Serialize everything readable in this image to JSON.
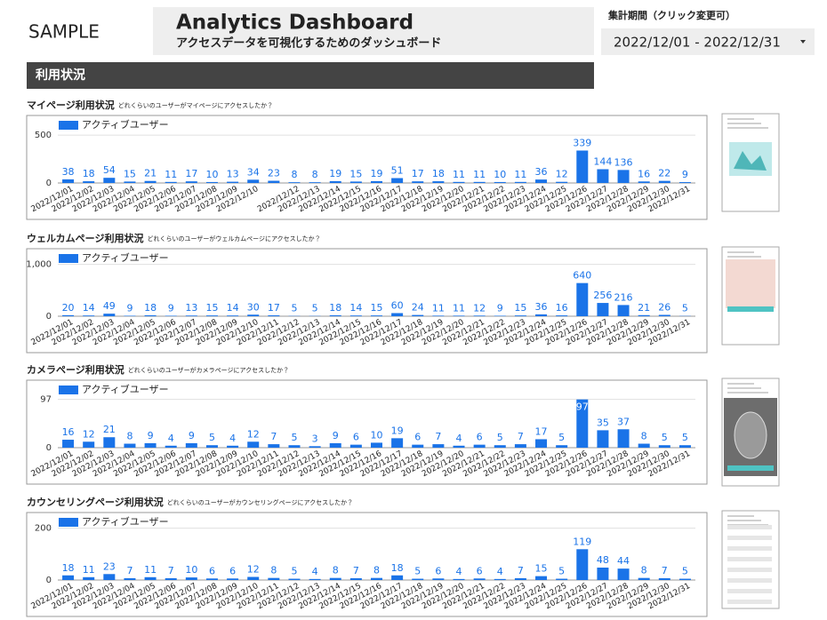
{
  "header": {
    "brand": "SAMPLE",
    "title": "Analytics Dashboard",
    "subtitle": "アクセスデータを可視化するためのダッシュボード",
    "period_label": "集計期間（クリック変更可）",
    "period_value": "2022/12/01 - 2022/12/31"
  },
  "section": "利用状況",
  "chart_data": [
    {
      "type": "bar",
      "title": "マイページ利用状況",
      "subtitle": "どれくらいのユーザーがマイページにアクセスしたか？",
      "categories": [
        "2022/12/01",
        "2022/12/02",
        "2022/12/03",
        "2022/12/04",
        "2022/12/05",
        "2022/12/06",
        "2022/12/07",
        "2022/12/08",
        "2022/12/09",
        "2022/12/10",
        null,
        "2022/12/12",
        "2022/12/13",
        "2022/12/14",
        "2022/12/15",
        "2022/12/16",
        "2022/12/17",
        "2022/12/18",
        "2022/12/19",
        "2022/12/20",
        "2022/12/21",
        "2022/12/22",
        "2022/12/23",
        "2022/12/24",
        "2022/12/25",
        "2022/12/26",
        "2022/12/27",
        "2022/12/28",
        "2022/12/29",
        "2022/12/30",
        "2022/12/31"
      ],
      "series": [
        {
          "name": "アクティブユーザー",
          "color": "#1a73e8",
          "values": [
            38,
            18,
            54,
            15,
            21,
            11,
            17,
            10,
            13,
            34,
            23,
            8,
            8,
            19,
            15,
            19,
            51,
            17,
            18,
            11,
            11,
            10,
            11,
            36,
            12,
            339,
            144,
            136,
            16,
            22,
            9
          ]
        }
      ],
      "ylim": [
        0,
        650
      ],
      "yticks": [
        0,
        500
      ],
      "grid": true
    },
    {
      "type": "bar",
      "title": "ウェルカムページ利用状況",
      "subtitle": "どれくらいのユーザーがウェルカムページにアクセスしたか？",
      "categories": [
        "2022/12/01",
        "2022/12/02",
        "2022/12/03",
        "2022/12/04",
        "2022/12/05",
        "2022/12/06",
        "2022/12/07",
        "2022/12/08",
        "2022/12/09",
        "2022/12/10",
        "2022/12/11",
        "2022/12/12",
        "2022/12/13",
        "2022/12/14",
        "2022/12/15",
        "2022/12/16",
        "2022/12/17",
        "2022/12/18",
        "2022/12/19",
        "2022/12/20",
        "2022/12/21",
        "2022/12/22",
        "2022/12/23",
        "2022/12/24",
        "2022/12/25",
        "2022/12/26",
        "2022/12/27",
        "2022/12/28",
        "2022/12/29",
        "2022/12/30",
        "2022/12/31"
      ],
      "series": [
        {
          "name": "アクティブユーザー",
          "color": "#1a73e8",
          "values": [
            20,
            14,
            49,
            9,
            18,
            9,
            13,
            15,
            14,
            30,
            17,
            5,
            5,
            18,
            14,
            15,
            60,
            24,
            11,
            11,
            12,
            9,
            15,
            36,
            16,
            640,
            256,
            216,
            21,
            26,
            5
          ]
        }
      ],
      "ylim": [
        0,
        1200
      ],
      "yticks": [
        0,
        {
          "value": 1000,
          "label": "1,000"
        }
      ],
      "grid": true
    },
    {
      "type": "bar",
      "title": "カメラページ利用状況",
      "subtitle": "どれくらいのユーザーがカメラページにアクセスしたか？",
      "categories": [
        "2022/12/01",
        "2022/12/02",
        "2022/12/03",
        "2022/12/04",
        "2022/12/05",
        "2022/12/06",
        "2022/12/07",
        "2022/12/08",
        "2022/12/09",
        "2022/12/10",
        "2022/12/11",
        "2022/12/12",
        "2022/12/13",
        "2022/12/14",
        "2022/12/15",
        "2022/12/16",
        "2022/12/17",
        "2022/12/18",
        "2022/12/19",
        "2022/12/20",
        "2022/12/21",
        "2022/12/22",
        "2022/12/23",
        "2022/12/24",
        "2022/12/25",
        "2022/12/26",
        "2022/12/27",
        "2022/12/28",
        "2022/12/29",
        "2022/12/30",
        "2022/12/31"
      ],
      "series": [
        {
          "name": "アクティブユーザー",
          "color": "#1a73e8",
          "values": [
            16,
            12,
            21,
            8,
            9,
            4,
            9,
            5,
            4,
            12,
            7,
            5,
            3,
            9,
            6,
            10,
            19,
            6,
            7,
            4,
            6,
            5,
            7,
            17,
            5,
            97,
            35,
            37,
            8,
            5,
            5
          ]
        }
      ],
      "ylim": [
        0,
        125
      ],
      "yticks": [
        0,
        97
      ],
      "grid": true
    },
    {
      "type": "bar",
      "title": "カウンセリングページ利用状況",
      "subtitle": "どれくらいのユーザーがカウンセリングページにアクセスしたか？",
      "categories": [
        "2022/12/01",
        "2022/12/02",
        "2022/12/03",
        "2022/12/04",
        "2022/12/05",
        "2022/12/06",
        "2022/12/07",
        "2022/12/08",
        "2022/12/09",
        "2022/12/10",
        "2022/12/11",
        "2022/12/12",
        "2022/12/13",
        "2022/12/14",
        "2022/12/15",
        "2022/12/16",
        "2022/12/17",
        "2022/12/18",
        "2022/12/19",
        "2022/12/20",
        "2022/12/21",
        "2022/12/22",
        "2022/12/23",
        "2022/12/24",
        "2022/12/25",
        "2022/12/26",
        "2022/12/27",
        "2022/12/28",
        "2022/12/29",
        "2022/12/30",
        "2022/12/31"
      ],
      "series": [
        {
          "name": "アクティブユーザー",
          "color": "#1a73e8",
          "values": [
            18,
            11,
            23,
            7,
            11,
            7,
            10,
            6,
            6,
            12,
            8,
            5,
            4,
            8,
            7,
            8,
            18,
            5,
            6,
            4,
            6,
            4,
            7,
            15,
            5,
            119,
            48,
            44,
            8,
            7,
            5
          ]
        }
      ],
      "ylim": [
        0,
        240
      ],
      "yticks": [
        0,
        200
      ],
      "grid": true
    }
  ]
}
